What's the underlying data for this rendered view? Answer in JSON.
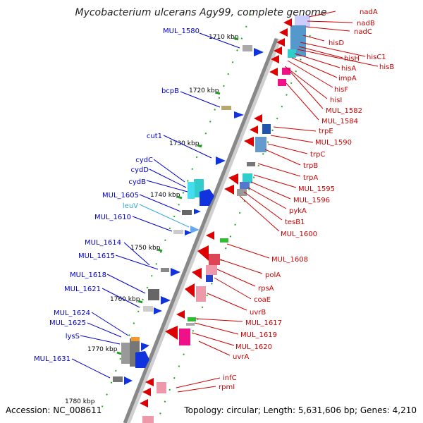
{
  "title": "Mycobacterium ulcerans Agy99, complete genome",
  "accession": "Accession: NC_008611",
  "topology": "Topology: circular; Length: 5,631,606 bp; Genes: 4,210",
  "colors": {
    "forward_label": "#0000cc",
    "reverse_label": "#cc0000",
    "rna_label": "#33aadd",
    "backbone": "#888888",
    "tick": "#229922"
  },
  "ticks": [
    "1710 kbp",
    "1720 kbp",
    "1730 kbp",
    "1740 kbp",
    "1750 kbp",
    "1760 kbp",
    "1770 kbp",
    "1780 kbp"
  ],
  "forward_genes": [
    "MUL_1580",
    "bcpB",
    "cut1",
    "cydC",
    "cydD",
    "cydB",
    "MUL_1605",
    "leuV",
    "MUL_1610",
    "MUL_1614",
    "MUL_1615",
    "MUL_1618",
    "MUL_1621",
    "MUL_1624",
    "MUL_1625",
    "lysS",
    "MUL_1631"
  ],
  "reverse_genes": [
    "nadA",
    "nadB",
    "nadC",
    "hisD",
    "hisC1",
    "hisH",
    "hisB",
    "hisA",
    "impA",
    "hisF",
    "hisI",
    "MUL_1582",
    "MUL_1584",
    "trpE",
    "MUL_1590",
    "trpC",
    "trpB",
    "trpA",
    "MUL_1595",
    "MUL_1596",
    "pykA",
    "tesB1",
    "MUL_1600",
    "MUL_1608",
    "polA",
    "rpsA",
    "coaE",
    "uvrB",
    "MUL_1617",
    "MUL_1619",
    "MUL_1620",
    "uvrA",
    "infC",
    "rpmI"
  ]
}
